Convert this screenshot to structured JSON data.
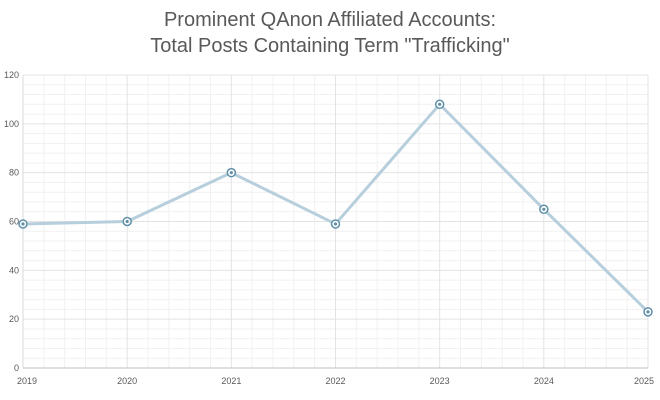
{
  "chart_data": {
    "type": "line",
    "title": [
      "Prominent QAnon Affiliated Accounts:",
      "Total Posts Containing Term \"Trafficking\""
    ],
    "xlabel": "",
    "ylabel": "",
    "x": [
      "2019",
      "2020",
      "2021",
      "2022",
      "2023",
      "2024",
      "2025"
    ],
    "series": [
      {
        "values": [
          59,
          60,
          80,
          59,
          108,
          65,
          23
        ]
      }
    ],
    "ylim": [
      0,
      120
    ],
    "yticks": [
      0,
      20,
      40,
      60,
      80,
      100,
      120
    ],
    "grid": true,
    "legend": "none",
    "colors": {
      "line": "#b7cfdd",
      "marker": "#5f8fa8",
      "grid_major": "#e3e3e3",
      "grid_minor": "#f1f1f1"
    }
  }
}
